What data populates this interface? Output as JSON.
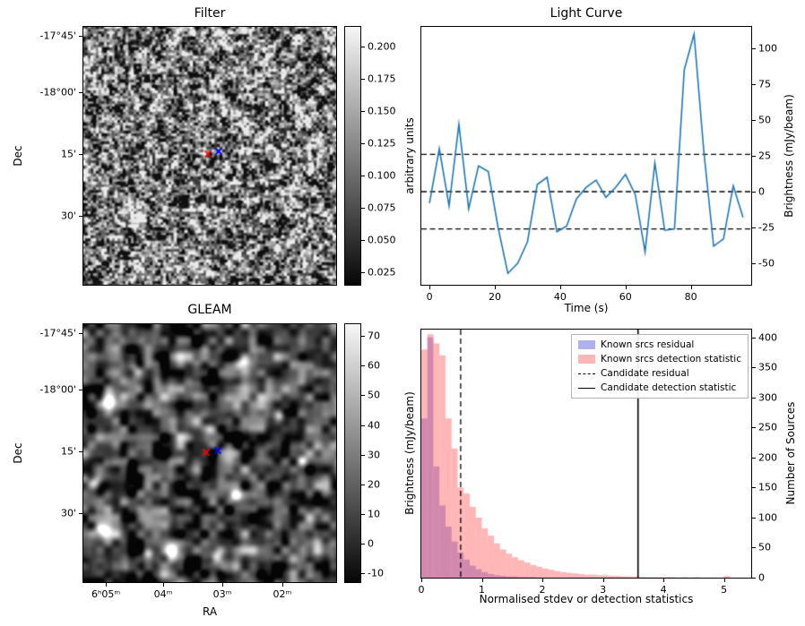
{
  "figure": {
    "background": "#ffffff"
  },
  "chart_data": [
    {
      "type": "heatmap",
      "panel": "top-left",
      "title": "Filter",
      "xlabel": "",
      "ylabel": "Dec",
      "yticks": [
        {
          "label": "-17°45'",
          "f": 0.035
        },
        {
          "label": "-18°00'",
          "f": 0.253
        },
        {
          "label": "15'",
          "f": 0.493
        },
        {
          "label": "30'",
          "f": 0.733
        }
      ],
      "colorbar": {
        "label": "arbitrary units",
        "vmin": 0.015,
        "vmax": 0.215,
        "ticks": [
          0.2,
          0.175,
          0.15,
          0.125,
          0.1,
          0.075,
          0.05,
          0.025
        ],
        "decimals": 3
      },
      "markers": [
        {
          "symbol": "x",
          "color": "#ff0000",
          "fx": 0.493,
          "fy": 0.493
        },
        {
          "symbol": "x",
          "color": "#0000ff",
          "fx": 0.535,
          "fy": 0.483
        }
      ],
      "description": "grayscale random-noise filter image"
    },
    {
      "type": "line",
      "panel": "top-right",
      "title": "Light Curve",
      "xlabel": "Time (s)",
      "ylabel": "Brightness (mJy/beam)",
      "line_color": "#1f77b4",
      "x": [
        0,
        3,
        6,
        9,
        12,
        15,
        18,
        21,
        24,
        27,
        30,
        33,
        36,
        39,
        42,
        45,
        48,
        51,
        54,
        57,
        60,
        63,
        66,
        69,
        72,
        75,
        78,
        81,
        84,
        87,
        90,
        93,
        96
      ],
      "y": [
        -8,
        30,
        -10,
        47,
        -12,
        18,
        14,
        -25,
        -57,
        -50,
        -35,
        5,
        10,
        -28,
        -24,
        -5,
        3,
        8,
        -4,
        3,
        12,
        -2,
        -42,
        20,
        -27,
        -26,
        85,
        110,
        28,
        -38,
        -33,
        4,
        -18
      ],
      "hlines": [
        26,
        0,
        -26
      ],
      "xticks": [
        0,
        20,
        40,
        60,
        80
      ],
      "yticks": [
        100,
        75,
        50,
        25,
        0,
        -25,
        -50
      ],
      "xlim": [
        -2.5,
        98.5
      ],
      "ylim": [
        -65,
        115
      ]
    },
    {
      "type": "heatmap",
      "panel": "bottom-left",
      "title": "GLEAM",
      "xlabel": "RA",
      "ylabel": "Dec",
      "xticks": [
        {
          "label": "6ʰ05ᵐ",
          "f": 0.089
        },
        {
          "label": "04ᵐ",
          "f": 0.316
        },
        {
          "label": "03ᵐ",
          "f": 0.55
        },
        {
          "label": "02ᵐ",
          "f": 0.787
        }
      ],
      "yticks": [
        {
          "label": "-17°45'",
          "f": 0.035
        },
        {
          "label": "-18°00'",
          "f": 0.253
        },
        {
          "label": "15'",
          "f": 0.493
        },
        {
          "label": "30'",
          "f": 0.733
        }
      ],
      "colorbar": {
        "label": "Brightness (mJy/beam)",
        "vmin": -13,
        "vmax": 74,
        "ticks": [
          70,
          60,
          50,
          40,
          30,
          20,
          10,
          0,
          -10
        ],
        "decimals": 0
      },
      "markers": [
        {
          "symbol": "x",
          "color": "#ff0000",
          "fx": 0.486,
          "fy": 0.497
        },
        {
          "symbol": "x",
          "color": "#0000ff",
          "fx": 0.532,
          "fy": 0.49
        }
      ],
      "sources": [
        {
          "fx": 0.1,
          "fy": 0.295,
          "amp": 235,
          "sigma": 7
        },
        {
          "fx": 0.045,
          "fy": 0.615,
          "amp": 205,
          "sigma": 5
        },
        {
          "fx": 0.075,
          "fy": 0.8,
          "amp": 225,
          "sigma": 6
        },
        {
          "fx": 0.215,
          "fy": 0.185,
          "amp": 170,
          "sigma": 5
        },
        {
          "fx": 0.345,
          "fy": 0.875,
          "amp": 230,
          "sigma": 6
        },
        {
          "fx": 0.525,
          "fy": 0.905,
          "amp": 215,
          "sigma": 5
        },
        {
          "fx": 0.635,
          "fy": 0.15,
          "amp": 205,
          "sigma": 5
        },
        {
          "fx": 0.6,
          "fy": 0.665,
          "amp": 185,
          "sigma": 5
        },
        {
          "fx": 0.255,
          "fy": 0.885,
          "amp": 150,
          "sigma": 4
        },
        {
          "fx": 0.865,
          "fy": 0.53,
          "amp": 140,
          "sigma": 4
        },
        {
          "fx": 0.775,
          "fy": 0.355,
          "amp": 125,
          "sigma": 4
        },
        {
          "fx": 0.5,
          "fy": 0.405,
          "amp": 100,
          "sigma": 4
        }
      ]
    },
    {
      "type": "histogram",
      "panel": "bottom-right",
      "title": "",
      "xlabel": "Normalised stdev or detection statistics",
      "ylabel": "Number of Sources",
      "bin_width": 0.1,
      "series": [
        {
          "name": "Known srcs residual",
          "color": "#5050dc",
          "alpha": 0.45,
          "values": [
            265,
            400,
            185,
            120,
            85,
            60,
            42,
            30,
            20,
            14,
            9,
            6,
            4,
            3,
            2,
            2,
            1,
            1,
            1,
            0,
            0,
            0,
            0,
            0,
            0,
            0,
            0,
            0,
            0,
            0,
            0,
            0,
            0,
            0,
            0,
            0,
            0,
            0,
            0,
            0,
            0,
            0,
            0,
            0,
            0,
            0,
            0,
            0,
            0,
            0,
            0
          ]
        },
        {
          "name": "Known srcs detection statistic",
          "color": "#ff5050",
          "alpha": 0.42,
          "values": [
            380,
            405,
            390,
            370,
            265,
            215,
            150,
            140,
            118,
            100,
            82,
            70,
            57,
            47,
            40,
            34,
            29,
            25,
            21,
            18,
            15,
            13,
            11,
            9,
            8,
            7,
            6,
            5,
            5,
            4,
            4,
            3,
            3,
            2,
            2,
            2,
            1,
            1,
            1,
            1,
            1,
            1,
            0,
            1,
            0,
            1,
            0,
            0,
            0,
            0,
            3
          ]
        }
      ],
      "vlines": [
        {
          "name": "Candidate residual",
          "x": 0.65,
          "style": "dashed",
          "color": "#000000"
        },
        {
          "name": "Candidate detection statistic",
          "x": 3.58,
          "style": "solid",
          "color": "#000000"
        }
      ],
      "xticks": [
        0,
        1,
        2,
        3,
        4,
        5
      ],
      "yticks": [
        0,
        50,
        100,
        150,
        200,
        250,
        300,
        350,
        400
      ],
      "xlim": [
        0,
        5.45
      ],
      "ylim": [
        0,
        413
      ],
      "legend_position": "upper right"
    }
  ]
}
